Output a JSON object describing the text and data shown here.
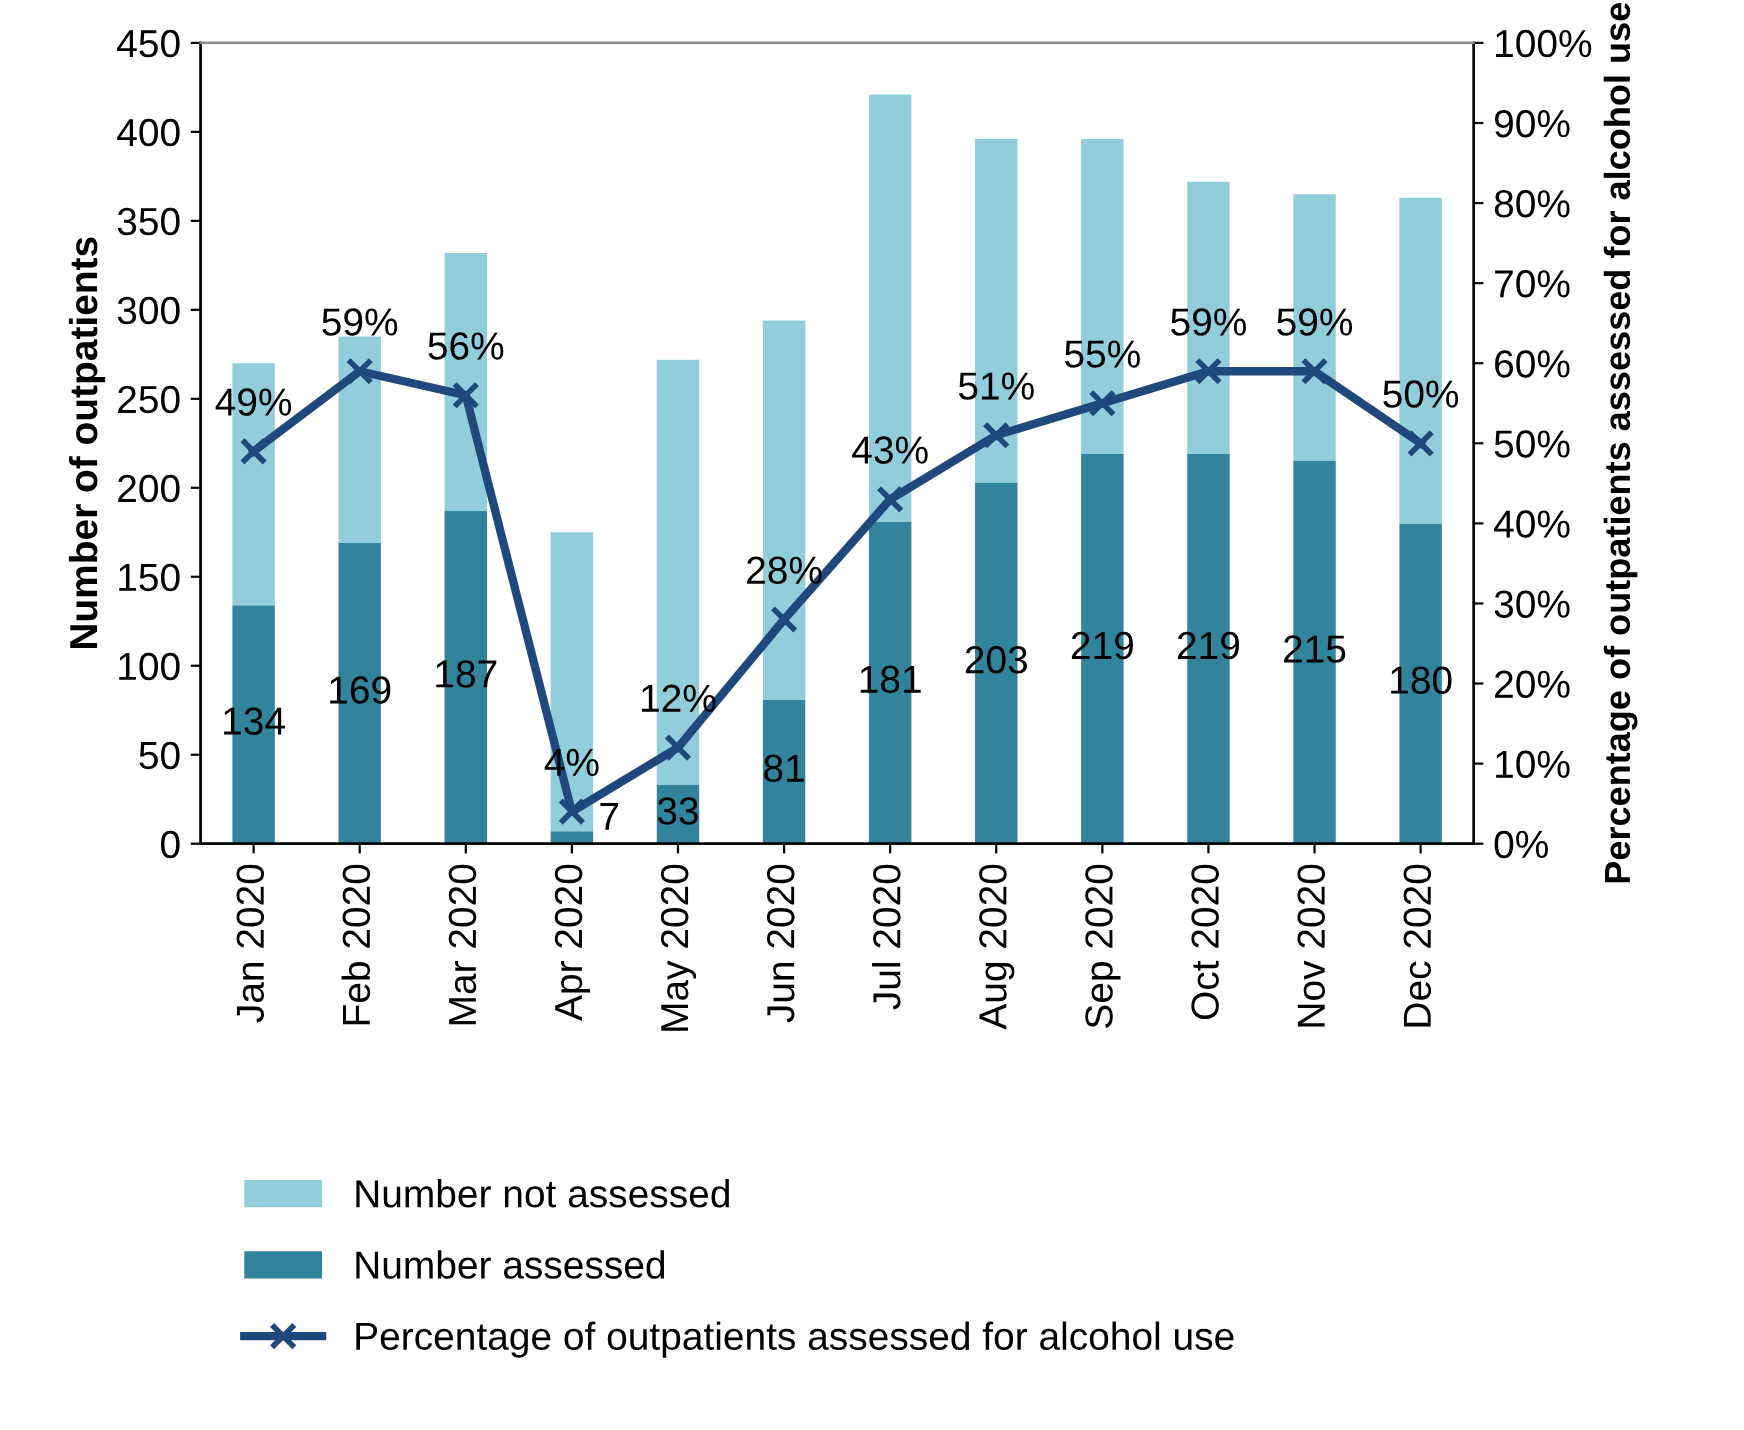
{
  "chart_data": {
    "type": "bar",
    "stacked": true,
    "categories": [
      "Jan 2020",
      "Feb 2020",
      "Mar 2020",
      "Apr 2020",
      "May 2020",
      "Jun 2020",
      "Jul 2020",
      "Aug 2020",
      "Sep 2020",
      "Oct 2020",
      "Nov 2020",
      "Dec 2020"
    ],
    "series": [
      {
        "name": "Number assessed",
        "color": "#31849b",
        "values": [
          134,
          169,
          187,
          7,
          33,
          81,
          181,
          203,
          219,
          219,
          215,
          180
        ],
        "value_labels": [
          "134",
          "169",
          "187",
          "7",
          "33",
          "81",
          "181",
          "203",
          "219",
          "219",
          "215",
          "180"
        ]
      },
      {
        "name": "Number not assessed",
        "color": "#92cddc",
        "values": [
          136,
          116,
          145,
          168,
          239,
          213,
          240,
          193,
          177,
          153,
          150,
          183
        ]
      },
      {
        "name": "Percentage of outpatients assessed for alcohol use",
        "type": "line",
        "axis": "y2",
        "color": "#1f497d",
        "marker": "cross",
        "values": [
          49,
          59,
          56,
          4,
          12,
          28,
          43,
          51,
          55,
          59,
          59,
          50
        ],
        "value_labels": [
          "49%",
          "59%",
          "56%",
          "4%",
          "12%",
          "28%",
          "43%",
          "51%",
          "55%",
          "59%",
          "59%",
          "50%"
        ]
      }
    ],
    "ylabel": "Number of outpatients",
    "y2label": "Percentage of outpatients assessed for alcohol use",
    "ylim": [
      0,
      450
    ],
    "yticks": [
      0,
      50,
      100,
      150,
      200,
      250,
      300,
      350,
      400,
      450
    ],
    "y2lim": [
      0,
      100
    ],
    "y2ticks": [
      {
        "value": 0,
        "label": "0%"
      },
      {
        "value": 10,
        "label": "10%"
      },
      {
        "value": 20,
        "label": "20%"
      },
      {
        "value": 30,
        "label": "30%"
      },
      {
        "value": 40,
        "label": "40%"
      },
      {
        "value": 50,
        "label": "50%"
      },
      {
        "value": 60,
        "label": "60%"
      },
      {
        "value": 70,
        "label": "70%"
      },
      {
        "value": 80,
        "label": "80%"
      },
      {
        "value": 90,
        "label": "90%"
      },
      {
        "value": 100,
        "label": "100%"
      }
    ],
    "grid": false,
    "legend": "bottom"
  }
}
